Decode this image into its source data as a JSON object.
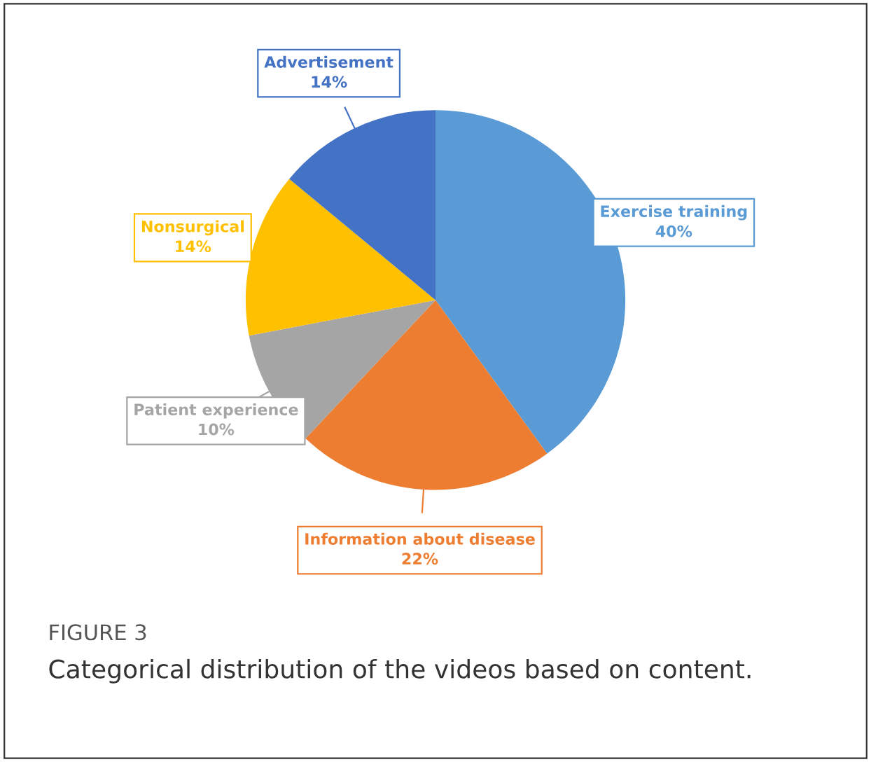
{
  "chart_data": {
    "type": "pie",
    "categories": [
      "Exercise training",
      "Information about disease",
      "Patient experience",
      "Nonsurgical",
      "Advertisement"
    ],
    "values": [
      40,
      22,
      10,
      14,
      14
    ],
    "colors": [
      "#5b9bd5",
      "#ed7d31",
      "#a5a5a5",
      "#ffc000",
      "#4472c4"
    ],
    "value_labels": [
      "40%",
      "22%",
      "10%",
      "14%",
      "14%"
    ],
    "annotations": [
      "FIGURE 3",
      "Categorical distribution of the videos based on content."
    ]
  }
}
